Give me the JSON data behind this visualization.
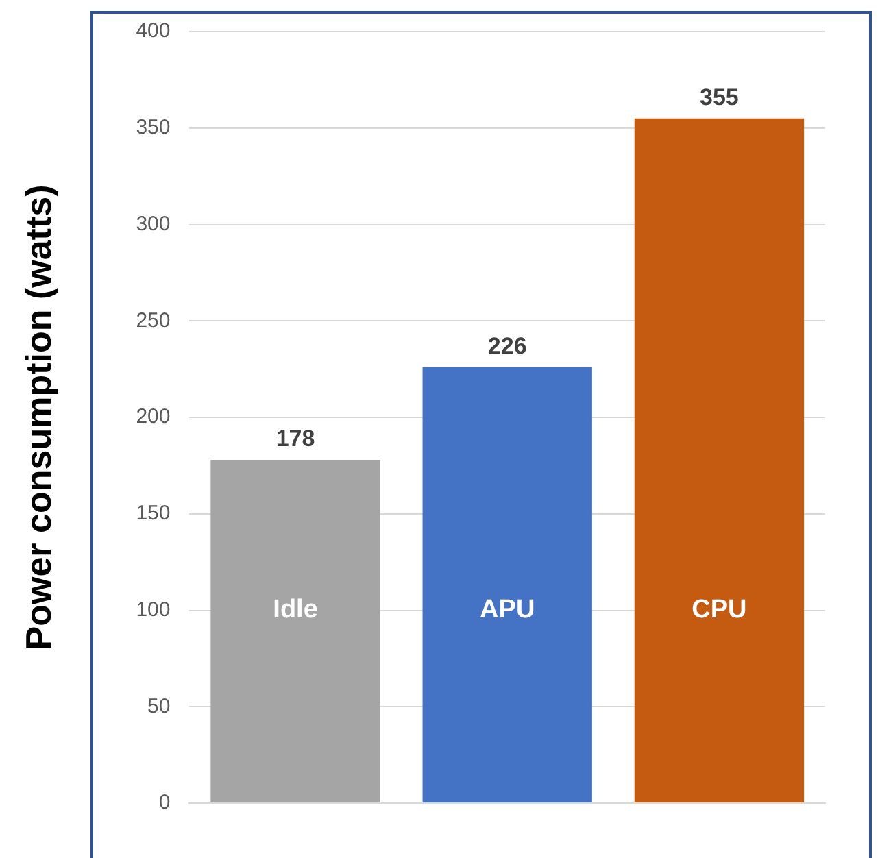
{
  "chart_data": {
    "type": "bar",
    "ylabel": "Power consumption (watts)",
    "categories": [
      "Idle",
      "APU",
      "CPU"
    ],
    "values": [
      178,
      226,
      355
    ],
    "colors": [
      "#a5a5a5",
      "#4472c4",
      "#c55a11"
    ],
    "ylim": [
      0,
      400
    ],
    "yticks": [
      0,
      50,
      100,
      150,
      200,
      250,
      300,
      350,
      400
    ],
    "grid": "y",
    "data_labels": true,
    "tick_labels": "y",
    "legend": false
  }
}
